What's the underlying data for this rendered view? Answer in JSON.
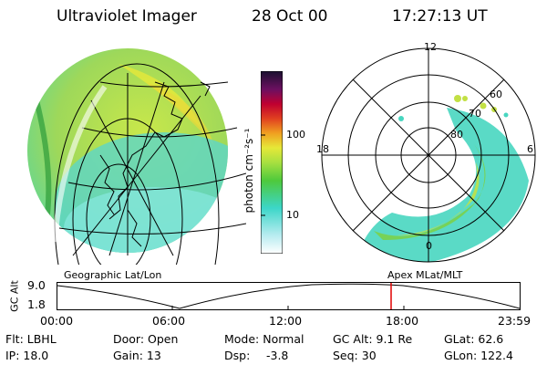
{
  "header": {
    "instrument": "Ultraviolet Imager",
    "date": "28 Oct 00",
    "time": "17:27:13 UT"
  },
  "colorbar": {
    "unit_label": "photon cm⁻²s⁻¹",
    "ticks": [
      "100",
      "10"
    ]
  },
  "left_panel": {
    "caption": "Geographic Lat/Lon"
  },
  "right_panel": {
    "caption": "Apex MLat/MLT",
    "mlt_labels": {
      "top": "12",
      "left": "18",
      "right": "6",
      "bottom": "0"
    },
    "lat_labels": [
      "60",
      "70",
      "80"
    ]
  },
  "orbit_plot": {
    "ylabel": "GC Alt",
    "ytick_top": "9.0",
    "ytick_bottom": "1.8",
    "xticks": [
      "00:00",
      "06:00",
      "12:00",
      "18:00",
      "23:59"
    ],
    "marker_color": "#e00000"
  },
  "info": {
    "flt": "Flt: LBHL",
    "ip": "IP: 18.0",
    "door": "Door: Open",
    "gain": "Gain: 13",
    "mode": "Mode: Normal",
    "dsp_label": "Dsp:",
    "dsp_value": "-3.8",
    "gcalt": "GC Alt: 9.1 Re",
    "seq": "Seq: 30",
    "glat": "GLat: 62.6",
    "glon": "GLon: 122.4"
  }
}
